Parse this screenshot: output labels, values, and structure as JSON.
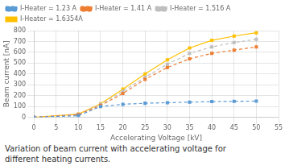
{
  "chart_data": {
    "type": "line",
    "x_label": "Accelerating Voltage [kV]",
    "y_label": "Beam current [nA]",
    "annotations": [
      "Variation of beam current with accelerating voltage for",
      "different heating currents."
    ],
    "x": [
      0,
      10,
      15,
      20,
      25,
      30,
      35,
      40,
      45,
      50
    ],
    "series": [
      {
        "name": "I-Heater = 1.23 A",
        "color": "#5b9bd5",
        "marker": "square",
        "line_style": "dashed",
        "values": [
          0,
          15,
          100,
          120,
          130,
          135,
          140,
          145,
          148,
          150
        ]
      },
      {
        "name": "I-Heater = 1.41 A",
        "color": "#ed7d31",
        "marker": "square",
        "line_style": "dashed",
        "values": [
          0,
          25,
          110,
          220,
          350,
          460,
          540,
          590,
          620,
          650
        ]
      },
      {
        "name": "I-Heater = 1.516 A",
        "color": "#bfbfbf",
        "marker": "square",
        "line_style": "dashed",
        "values": [
          0,
          28,
          120,
          240,
          370,
          490,
          590,
          650,
          690,
          720
        ]
      },
      {
        "name": "I-Heater = 1.6354A",
        "color": "#ffc000",
        "marker": "square",
        "line_style": "solid",
        "values": [
          0,
          30,
          125,
          260,
          400,
          530,
          640,
          710,
          750,
          780
        ]
      }
    ],
    "xlim": [
      0,
      55
    ],
    "ylim": [
      0,
      800
    ],
    "xticks": [
      0,
      5,
      10,
      15,
      20,
      25,
      30,
      35,
      40,
      45,
      50,
      55
    ],
    "yticks": [
      0,
      100,
      200,
      300,
      400,
      500,
      600,
      700,
      800
    ],
    "grid": true,
    "legend": "upper left"
  }
}
